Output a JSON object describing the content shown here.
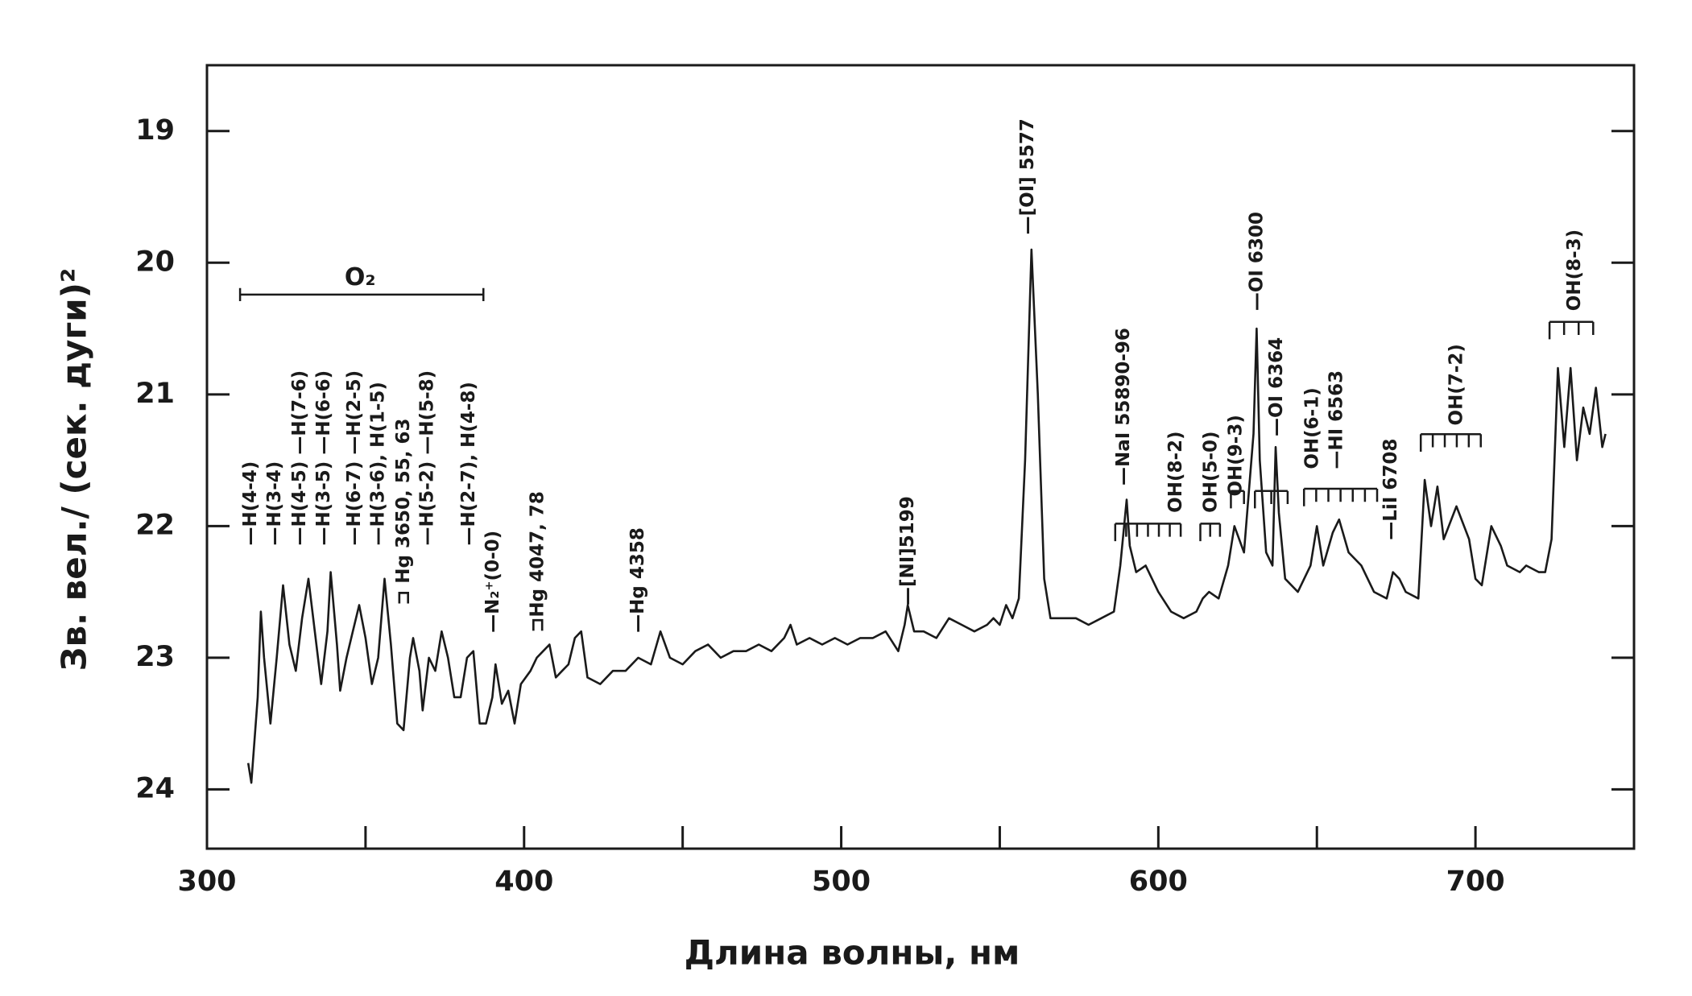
{
  "chart_data": {
    "type": "line",
    "xlabel": "Длина волны, нм",
    "ylabel": "Зв. вел./ (сек. дуги)²",
    "xlim": [
      300,
      750
    ],
    "xticks": [
      300,
      400,
      500,
      600,
      700
    ],
    "xminorticks": [
      350,
      450,
      550,
      650
    ],
    "ylim": [
      24.45,
      18.5
    ],
    "yticks": [
      19,
      20,
      21,
      22,
      23,
      24
    ],
    "color": "#1a1a1a",
    "x": [
      313,
      314,
      316,
      317,
      318,
      320,
      322,
      324,
      326,
      328,
      330,
      332,
      334,
      336,
      338,
      339,
      341,
      342,
      344,
      346,
      348,
      350,
      352,
      354,
      356,
      358,
      360,
      362,
      364,
      365,
      367,
      368,
      370,
      372,
      374,
      376,
      378,
      380,
      382,
      384,
      386,
      388,
      390,
      391,
      393,
      395,
      397,
      399,
      402,
      404,
      406,
      408,
      410,
      412,
      414,
      416,
      418,
      420,
      424,
      428,
      432,
      436,
      440,
      443,
      446,
      450,
      454,
      458,
      462,
      466,
      470,
      474,
      478,
      482,
      484,
      486,
      490,
      494,
      498,
      502,
      506,
      510,
      514,
      518,
      520,
      521,
      523,
      526,
      530,
      534,
      538,
      542,
      546,
      548,
      550,
      552,
      554,
      556,
      558,
      560,
      562,
      564,
      566,
      570,
      574,
      578,
      582,
      586,
      588,
      590,
      591,
      593,
      596,
      600,
      604,
      608,
      612,
      614,
      616,
      619,
      622,
      624,
      627,
      630,
      631,
      632,
      634,
      636,
      637,
      638,
      640,
      644,
      648,
      650,
      652,
      655,
      657,
      660,
      664,
      668,
      672,
      674,
      676,
      678,
      682,
      684,
      686,
      688,
      690,
      694,
      698,
      700,
      702,
      705,
      708,
      710,
      714,
      716,
      720,
      722,
      724,
      726,
      728,
      730,
      732,
      734,
      736,
      738,
      740,
      741
    ],
    "values": [
      23.8,
      23.95,
      23.3,
      22.65,
      23.0,
      23.5,
      23.0,
      22.45,
      22.9,
      23.1,
      22.7,
      22.4,
      22.8,
      23.2,
      22.8,
      22.35,
      22.9,
      23.25,
      23.0,
      22.8,
      22.6,
      22.85,
      23.2,
      23.0,
      22.4,
      22.9,
      23.5,
      23.55,
      23.0,
      22.85,
      23.1,
      23.4,
      23.0,
      23.1,
      22.8,
      23.0,
      23.3,
      23.3,
      23.0,
      22.95,
      23.5,
      23.5,
      23.3,
      23.05,
      23.35,
      23.25,
      23.5,
      23.2,
      23.1,
      23.0,
      22.95,
      22.9,
      23.15,
      23.1,
      23.05,
      22.85,
      22.8,
      23.15,
      23.2,
      23.1,
      23.1,
      23.0,
      23.05,
      22.8,
      23.0,
      23.05,
      22.95,
      22.9,
      23.0,
      22.95,
      22.95,
      22.9,
      22.95,
      22.85,
      22.75,
      22.9,
      22.85,
      22.9,
      22.85,
      22.9,
      22.85,
      22.85,
      22.8,
      22.95,
      22.75,
      22.6,
      22.8,
      22.8,
      22.85,
      22.7,
      22.75,
      22.8,
      22.75,
      22.7,
      22.75,
      22.6,
      22.7,
      22.55,
      21.5,
      19.9,
      21.0,
      22.4,
      22.7,
      22.7,
      22.7,
      22.75,
      22.7,
      22.65,
      22.3,
      21.8,
      22.15,
      22.35,
      22.3,
      22.5,
      22.65,
      22.7,
      22.65,
      22.55,
      22.5,
      22.55,
      22.3,
      22.0,
      22.2,
      21.3,
      20.5,
      21.5,
      22.2,
      22.3,
      21.4,
      21.9,
      22.4,
      22.5,
      22.3,
      22.0,
      22.3,
      22.05,
      21.95,
      22.2,
      22.3,
      22.5,
      22.55,
      22.35,
      22.4,
      22.5,
      22.55,
      21.65,
      22.0,
      21.7,
      22.1,
      21.85,
      22.1,
      22.4,
      22.45,
      22.0,
      22.15,
      22.3,
      22.35,
      22.3,
      22.35,
      22.35,
      22.1,
      20.8,
      21.4,
      20.8,
      21.5,
      21.1,
      21.3,
      20.95,
      21.4,
      21.3
    ],
    "annotations": [
      "O₂",
      "—H(4-4)",
      "—H(3-4)",
      "—H(4-5) —H(7-6)",
      "—H(3-5) —H(6-6)",
      "—H(6-7) —H(2-5)",
      "—H(3-6), H(1-5)",
      "⊐ Hg 3650, 55, 63",
      "—H(5-2) —H(5-8)",
      "—H(2-7), H(4-8)",
      "—N₂⁺(0-0)",
      "⊐Hg 4047, 78",
      "—Hg 4358",
      "—[NI]5199",
      "—[OI] 5577",
      "—NaI 55890-96",
      "OH(8-2)",
      "OH(5-0)",
      "OH(9-3)",
      "—OI 6300",
      "—OI 6364",
      "OH(6-1)",
      "—HI 6563",
      "—LiI 6708",
      "OH(7-2)",
      "OH(8-3)"
    ]
  }
}
